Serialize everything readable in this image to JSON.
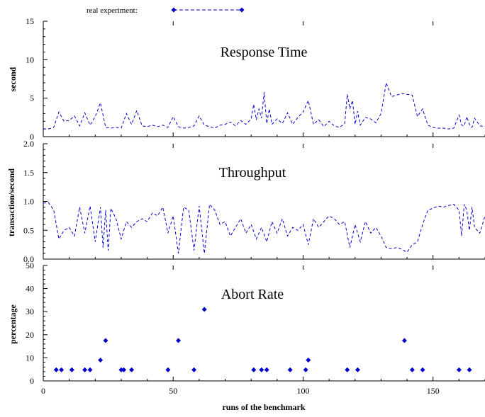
{
  "legend": {
    "label": "real experiment:"
  },
  "colors": {
    "series": "#0000cc",
    "axis": "#000000"
  },
  "xaxis": {
    "label": "runs of the benchmark",
    "ticks": [
      "0",
      "50",
      "100",
      "150"
    ],
    "tick_values": [
      0,
      50,
      100,
      150
    ],
    "range": [
      0,
      170
    ]
  },
  "chart_data": [
    {
      "type": "line",
      "title": "Response Time",
      "ylabel": "second",
      "ylim": [
        0,
        15
      ],
      "yticks": [
        "0",
        "5",
        "10",
        "15"
      ],
      "ytick_values": [
        0,
        5,
        10,
        15
      ],
      "xlim": [
        0,
        170
      ],
      "series": [
        {
          "name": "real experiment:",
          "x": [
            0,
            2,
            4,
            6,
            8,
            10,
            12,
            14,
            16,
            18,
            20,
            22,
            24,
            26,
            28,
            30,
            32,
            34,
            36,
            38,
            40,
            42,
            44,
            46,
            48,
            50,
            52,
            54,
            56,
            58,
            60,
            62,
            64,
            66,
            68,
            70,
            72,
            74,
            76,
            78,
            80,
            81,
            82,
            83,
            84,
            85,
            86,
            87,
            88,
            90,
            92,
            94,
            96,
            98,
            100,
            102,
            104,
            106,
            108,
            110,
            112,
            114,
            116,
            117,
            118,
            119,
            120,
            121,
            122,
            124,
            126,
            128,
            130,
            132,
            134,
            136,
            138,
            140,
            142,
            144,
            146,
            148,
            150,
            152,
            154,
            156,
            158,
            160,
            161,
            162,
            163,
            164,
            165,
            166,
            168,
            170
          ],
          "values": [
            1.0,
            1.0,
            1.2,
            3.2,
            2.0,
            2.1,
            2.7,
            1.4,
            3.1,
            1.5,
            2.6,
            4.4,
            1.2,
            1.1,
            1.2,
            1.1,
            3.0,
            1.6,
            3.4,
            1.4,
            1.3,
            1.5,
            1.3,
            1.5,
            1.2,
            2.6,
            1.3,
            1.1,
            1.2,
            1.4,
            2.7,
            1.5,
            1.3,
            1.1,
            1.5,
            1.6,
            1.9,
            1.4,
            2.1,
            1.6,
            2.3,
            4.2,
            2.2,
            3.6,
            2.4,
            5.8,
            1.7,
            3.6,
            1.6,
            2.3,
            1.7,
            3.1,
            1.6,
            2.5,
            3.2,
            4.7,
            1.6,
            2.2,
            1.3,
            2.0,
            1.4,
            1.2,
            1.7,
            5.5,
            3.6,
            4.7,
            1.6,
            3.3,
            1.5,
            2.5,
            2.3,
            1.8,
            3.0,
            7.0,
            5.2,
            5.4,
            5.6,
            5.5,
            5.4,
            2.6,
            3.6,
            1.5,
            1.2,
            1.1,
            1.1,
            1.0,
            1.1,
            2.8,
            1.5,
            1.4,
            2.6,
            1.6,
            1.2,
            2.4,
            1.4,
            1.3
          ]
        }
      ]
    },
    {
      "type": "line",
      "title": "Throughput",
      "ylabel": "transaction/second",
      "ylim": [
        0,
        2
      ],
      "yticks": [
        "0.0",
        "0.5",
        "1.0",
        "1.5",
        "2.0"
      ],
      "ytick_values": [
        0,
        0.5,
        1.0,
        1.5,
        2.0
      ],
      "xlim": [
        0,
        170
      ],
      "series": [
        {
          "name": "real experiment:",
          "x": [
            0,
            2,
            4,
            6,
            8,
            10,
            12,
            14,
            16,
            18,
            20,
            22,
            23,
            24,
            25,
            26,
            28,
            30,
            32,
            34,
            36,
            38,
            40,
            42,
            44,
            46,
            48,
            50,
            52,
            54,
            56,
            58,
            60,
            62,
            64,
            66,
            68,
            70,
            72,
            74,
            76,
            78,
            80,
            82,
            84,
            86,
            88,
            90,
            92,
            94,
            96,
            98,
            100,
            102,
            104,
            106,
            108,
            110,
            112,
            114,
            116,
            118,
            120,
            122,
            124,
            126,
            128,
            130,
            132,
            134,
            136,
            138,
            140,
            142,
            144,
            146,
            148,
            150,
            152,
            154,
            156,
            158,
            160,
            161,
            162,
            163,
            164,
            165,
            166,
            168,
            170
          ],
          "values": [
            0.97,
            0.98,
            0.85,
            0.35,
            0.5,
            0.55,
            0.4,
            0.9,
            0.45,
            0.92,
            0.3,
            0.9,
            0.2,
            0.85,
            0.15,
            0.88,
            0.7,
            0.35,
            0.65,
            0.55,
            0.65,
            0.7,
            0.65,
            0.8,
            0.75,
            0.9,
            0.45,
            0.75,
            0.1,
            0.9,
            0.85,
            0.15,
            0.92,
            0.1,
            0.95,
            0.85,
            0.6,
            0.65,
            0.4,
            0.55,
            0.7,
            0.45,
            0.6,
            0.35,
            0.55,
            0.3,
            0.65,
            0.45,
            0.7,
            0.4,
            0.55,
            0.5,
            0.6,
            0.25,
            0.7,
            0.55,
            0.65,
            0.75,
            0.7,
            0.6,
            0.65,
            0.2,
            0.6,
            0.3,
            0.65,
            0.45,
            0.55,
            0.4,
            0.2,
            0.18,
            0.2,
            0.17,
            0.12,
            0.25,
            0.3,
            0.6,
            0.85,
            0.88,
            0.92,
            0.9,
            0.93,
            0.95,
            0.85,
            0.4,
            0.95,
            0.85,
            0.5,
            0.9,
            0.55,
            0.45,
            0.75
          ]
        }
      ]
    },
    {
      "type": "scatter",
      "title": "Abort Rate",
      "ylabel": "percentage",
      "ylim": [
        0,
        50
      ],
      "yticks": [
        "0",
        "10",
        "20",
        "30",
        "40",
        "50"
      ],
      "ytick_values": [
        0,
        10,
        20,
        30,
        40,
        50
      ],
      "xlim": [
        0,
        170
      ],
      "series": [
        {
          "name": "real experiment:",
          "x": [
            5,
            7,
            11,
            16,
            18,
            22,
            24,
            30,
            31,
            34,
            48,
            52,
            58,
            62,
            81,
            84,
            86,
            95,
            101,
            102,
            117,
            121,
            139,
            142,
            146,
            160,
            164
          ],
          "values": [
            4.8,
            4.8,
            4.8,
            4.8,
            4.8,
            9.0,
            17.5,
            4.8,
            4.8,
            4.8,
            4.8,
            17.5,
            4.8,
            31.0,
            4.8,
            4.8,
            4.8,
            4.8,
            4.8,
            9.0,
            4.8,
            4.8,
            17.5,
            4.8,
            4.8,
            4.8,
            4.8
          ]
        }
      ]
    }
  ]
}
